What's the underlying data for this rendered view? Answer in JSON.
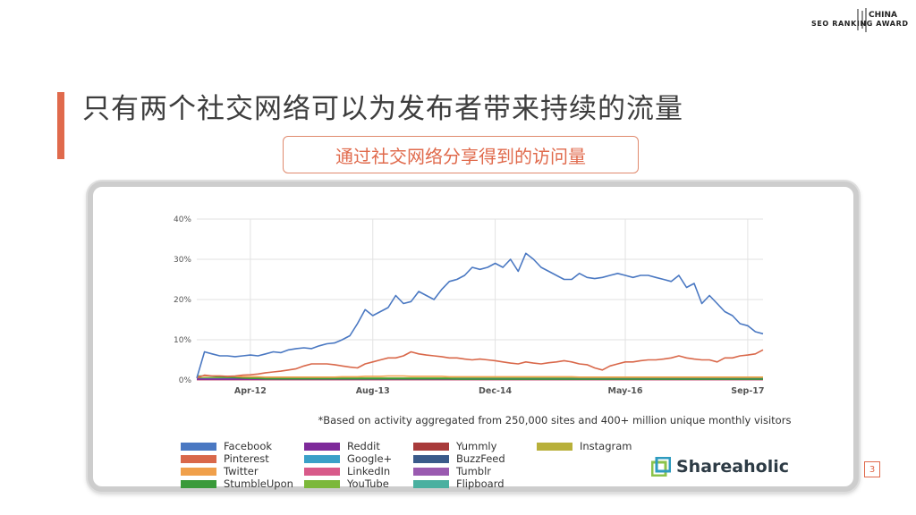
{
  "logo": {
    "line1": "CHINA",
    "line2": "SEO RANKING AWARD"
  },
  "slide": {
    "title": "只有两个社交网络可以为发布者带来持续的流量",
    "subtitle": "通过社交网络分享得到的访问量",
    "page_number": "3"
  },
  "chart_data": {
    "type": "line",
    "title": "",
    "xlabel": "",
    "ylabel": "",
    "ylim": [
      0,
      40
    ],
    "y_ticks": [
      "40%",
      "30%",
      "20%",
      "10%",
      "0%"
    ],
    "x_ticks": [
      "Apr-12",
      "Aug-13",
      "Dec-14",
      "May-16",
      "Sep-17"
    ],
    "x": [
      "2011-09",
      "2011-10",
      "2011-11",
      "2011-12",
      "2012-01",
      "2012-02",
      "2012-03",
      "2012-04",
      "2012-05",
      "2012-06",
      "2012-07",
      "2012-08",
      "2012-09",
      "2012-10",
      "2012-11",
      "2012-12",
      "2013-01",
      "2013-02",
      "2013-03",
      "2013-04",
      "2013-05",
      "2013-06",
      "2013-07",
      "2013-08",
      "2013-09",
      "2013-10",
      "2013-11",
      "2013-12",
      "2014-01",
      "2014-02",
      "2014-03",
      "2014-04",
      "2014-05",
      "2014-06",
      "2014-07",
      "2014-08",
      "2014-09",
      "2014-10",
      "2014-11",
      "2014-12",
      "2015-01",
      "2015-02",
      "2015-03",
      "2015-04",
      "2015-05",
      "2015-06",
      "2015-07",
      "2015-08",
      "2015-09",
      "2015-10",
      "2015-11",
      "2015-12",
      "2016-01",
      "2016-02",
      "2016-03",
      "2016-04",
      "2016-05",
      "2016-06",
      "2016-07",
      "2016-08",
      "2016-09",
      "2016-10",
      "2016-11",
      "2016-12",
      "2017-01",
      "2017-02",
      "2017-03",
      "2017-04",
      "2017-05",
      "2017-06",
      "2017-07",
      "2017-08",
      "2017-09",
      "2017-10",
      "2017-11"
    ],
    "grid": true,
    "legend_position": "bottom-left",
    "series": [
      {
        "name": "Facebook",
        "color": "#4a78c2",
        "values": [
          0.5,
          7,
          6.5,
          6,
          6,
          5.8,
          6,
          6.2,
          6,
          6.5,
          7,
          6.8,
          7.5,
          7.8,
          8,
          7.8,
          8.5,
          9,
          9.2,
          10,
          11,
          14,
          17.5,
          16,
          17,
          18,
          21,
          19,
          19.5,
          22,
          21,
          20,
          22.5,
          24.5,
          25,
          26,
          28,
          27.5,
          28,
          29,
          28,
          30,
          27,
          31.5,
          30,
          28,
          27,
          26,
          25,
          25,
          26.5,
          25.5,
          25.2,
          25.5,
          26,
          26.5,
          26,
          25.5,
          26,
          26,
          25.5,
          25,
          24.5,
          26,
          23,
          24,
          19,
          21,
          19,
          17,
          16,
          14,
          13.5,
          12,
          11.5
        ]
      },
      {
        "name": "Pinterest",
        "color": "#d9684a",
        "values": [
          0.5,
          1.2,
          1,
          1,
          0.9,
          1,
          1.2,
          1.3,
          1.5,
          1.8,
          2,
          2.2,
          2.5,
          2.8,
          3.5,
          4,
          4,
          4,
          3.8,
          3.5,
          3.2,
          3,
          4,
          4.5,
          5,
          5.5,
          5.5,
          6,
          7,
          6.5,
          6.2,
          6,
          5.8,
          5.5,
          5.5,
          5.2,
          5,
          5.2,
          5,
          4.8,
          4.5,
          4.2,
          4,
          4.5,
          4.2,
          4,
          4.3,
          4.5,
          4.8,
          4.5,
          4,
          3.8,
          3,
          2.5,
          3.5,
          4,
          4.5,
          4.5,
          4.8,
          5,
          5,
          5.2,
          5.5,
          6,
          5.5,
          5.2,
          5,
          5,
          4.5,
          5.5,
          5.5,
          6,
          6.2,
          6.5,
          7.5
        ]
      },
      {
        "name": "Twitter",
        "color": "#f0a04b",
        "values": [
          0.8,
          1,
          1,
          1,
          0.9,
          0.9,
          0.8,
          0.8,
          0.8,
          0.7,
          0.7,
          0.7,
          0.7,
          0.7,
          0.7,
          0.7,
          0.7,
          0.7,
          0.7,
          0.8,
          0.8,
          0.8,
          0.9,
          0.9,
          0.9,
          1,
          1,
          1,
          0.9,
          0.9,
          0.9,
          0.9,
          0.9,
          0.8,
          0.8,
          0.8,
          0.8,
          0.8,
          0.8,
          0.8,
          0.8,
          0.8,
          0.8,
          0.8,
          0.8,
          0.8,
          0.8,
          0.8,
          0.8,
          0.8,
          0.7,
          0.7,
          0.7,
          0.7,
          0.7,
          0.7,
          0.7,
          0.7,
          0.7,
          0.7,
          0.7,
          0.7,
          0.7,
          0.7,
          0.7,
          0.7,
          0.7,
          0.7,
          0.7,
          0.7,
          0.7,
          0.7,
          0.7,
          0.7,
          0.7
        ]
      },
      {
        "name": "StumbleUpon",
        "color": "#3a9a3a",
        "values": [
          1,
          1,
          0.9,
          0.8,
          0.7,
          0.6,
          0.5,
          0.4,
          0.4,
          0.3,
          0.3,
          0.3,
          0.3,
          0.3,
          0.3,
          0.3,
          0.3,
          0.3,
          0.3,
          0.3,
          0.3,
          0.3,
          0.3,
          0.3,
          0.3,
          0.3,
          0.3,
          0.3,
          0.3,
          0.3,
          0.3,
          0.3,
          0.3,
          0.3,
          0.2,
          0.2,
          0.2,
          0.2,
          0.2,
          0.2,
          0.2,
          0.2,
          0.2,
          0.2,
          0.2,
          0.2,
          0.2,
          0.2,
          0.2,
          0.2,
          0.2,
          0.2,
          0.2,
          0.2,
          0.2,
          0.2,
          0.2,
          0.2,
          0.2,
          0.2,
          0.2,
          0.2,
          0.2,
          0.2,
          0.2,
          0.2,
          0.2,
          0.2,
          0.2,
          0.2,
          0.2,
          0.2,
          0.2,
          0.2,
          0.2
        ]
      },
      {
        "name": "Reddit",
        "color": "#7e2a9a",
        "values": [
          0.2,
          0.2,
          0.2,
          0.2,
          0.2,
          0.2,
          0.2,
          0.2,
          0.2,
          0.2,
          0.2,
          0.2,
          0.2,
          0.2,
          0.2,
          0.2,
          0.2,
          0.2,
          0.2,
          0.2,
          0.2,
          0.2,
          0.2,
          0.2,
          0.2,
          0.2,
          0.2,
          0.2,
          0.2,
          0.2,
          0.2,
          0.2,
          0.2,
          0.2,
          0.2,
          0.2,
          0.2,
          0.2,
          0.2,
          0.2,
          0.2,
          0.2,
          0.2,
          0.2,
          0.2,
          0.2,
          0.2,
          0.2,
          0.2,
          0.2,
          0.2,
          0.2,
          0.2,
          0.2,
          0.2,
          0.2,
          0.2,
          0.2,
          0.2,
          0.2,
          0.2,
          0.2,
          0.2,
          0.2,
          0.2,
          0.2,
          0.2,
          0.2,
          0.2,
          0.2,
          0.2,
          0.2,
          0.2,
          0.2,
          0.2
        ]
      },
      {
        "name": "Google+",
        "color": "#3aa0c8",
        "values": [
          0.3,
          0.3,
          0.3,
          0.3,
          0.3,
          0.3,
          0.3,
          0.3,
          0.3,
          0.3,
          0.3,
          0.3,
          0.3,
          0.3,
          0.3,
          0.3,
          0.3,
          0.3,
          0.3,
          0.3,
          0.3,
          0.3,
          0.3,
          0.3,
          0.3,
          0.3,
          0.3,
          0.3,
          0.3,
          0.3,
          0.3,
          0.3,
          0.3,
          0.3,
          0.3,
          0.3,
          0.3,
          0.3,
          0.3,
          0.3,
          0.3,
          0.3,
          0.3,
          0.3,
          0.3,
          0.3,
          0.3,
          0.3,
          0.3,
          0.3,
          0.3,
          0.3,
          0.3,
          0.3,
          0.3,
          0.3,
          0.3,
          0.3,
          0.3,
          0.3,
          0.3,
          0.3,
          0.3,
          0.3,
          0.3,
          0.3,
          0.3,
          0.3,
          0.3,
          0.3,
          0.3,
          0.3,
          0.3,
          0.3,
          0.3
        ]
      },
      {
        "name": "LinkedIn",
        "color": "#d85a8a",
        "values": [
          0.1,
          0.1,
          0.1,
          0.1,
          0.1,
          0.1,
          0.1,
          0.1,
          0.1,
          0.1,
          0.1,
          0.1,
          0.1,
          0.1,
          0.1,
          0.1,
          0.1,
          0.1,
          0.1,
          0.1,
          0.1,
          0.1,
          0.1,
          0.1,
          0.1,
          0.1,
          0.1,
          0.1,
          0.1,
          0.1,
          0.1,
          0.1,
          0.1,
          0.1,
          0.1,
          0.1,
          0.1,
          0.1,
          0.1,
          0.1,
          0.1,
          0.1,
          0.1,
          0.1,
          0.1,
          0.1,
          0.1,
          0.1,
          0.1,
          0.1,
          0.1,
          0.1,
          0.1,
          0.1,
          0.1,
          0.1,
          0.1,
          0.1,
          0.1,
          0.1,
          0.1,
          0.1,
          0.1,
          0.1,
          0.1,
          0.1,
          0.1,
          0.1,
          0.1,
          0.1,
          0.1,
          0.1,
          0.1,
          0.1,
          0.1
        ]
      },
      {
        "name": "YouTube",
        "color": "#7cb83a",
        "values": [
          0.5,
          0.5,
          0.5,
          0.5,
          0.5,
          0.5,
          0.5,
          0.5,
          0.5,
          0.5,
          0.5,
          0.5,
          0.5,
          0.5,
          0.5,
          0.5,
          0.5,
          0.5,
          0.5,
          0.5,
          0.5,
          0.5,
          0.5,
          0.5,
          0.5,
          0.5,
          0.5,
          0.5,
          0.5,
          0.5,
          0.5,
          0.5,
          0.5,
          0.5,
          0.5,
          0.5,
          0.5,
          0.5,
          0.5,
          0.5,
          0.5,
          0.5,
          0.5,
          0.5,
          0.5,
          0.5,
          0.5,
          0.5,
          0.5,
          0.5,
          0.5,
          0.5,
          0.5,
          0.5,
          0.5,
          0.5,
          0.5,
          0.5,
          0.5,
          0.5,
          0.5,
          0.5,
          0.5,
          0.5,
          0.5,
          0.5,
          0.5,
          0.5,
          0.5,
          0.5,
          0.5,
          0.5,
          0.5,
          0.5,
          0.5
        ]
      },
      {
        "name": "Yummly",
        "color": "#a83a3a",
        "values": [
          0.1,
          0.1,
          0.1,
          0.1,
          0.1,
          0.1,
          0.1,
          0.1,
          0.1,
          0.1,
          0.1,
          0.1,
          0.1,
          0.1,
          0.1,
          0.1,
          0.1,
          0.1,
          0.1,
          0.1,
          0.1,
          0.1,
          0.1,
          0.1,
          0.1,
          0.1,
          0.1,
          0.1,
          0.1,
          0.1,
          0.1,
          0.1,
          0.1,
          0.1,
          0.1,
          0.1,
          0.1,
          0.1,
          0.1,
          0.1,
          0.1,
          0.1,
          0.1,
          0.1,
          0.1,
          0.1,
          0.1,
          0.1,
          0.1,
          0.1,
          0.1,
          0.1,
          0.1,
          0.1,
          0.1,
          0.1,
          0.1,
          0.1,
          0.1,
          0.1,
          0.1,
          0.1,
          0.1,
          0.1,
          0.1,
          0.1,
          0.1,
          0.1,
          0.1,
          0.1,
          0.1,
          0.1,
          0.1,
          0.1,
          0.1
        ]
      },
      {
        "name": "BuzzFeed",
        "color": "#3a5a8a",
        "values": [
          0.1,
          0.1,
          0.1,
          0.1,
          0.1,
          0.1,
          0.1,
          0.1,
          0.1,
          0.1,
          0.1,
          0.1,
          0.1,
          0.1,
          0.1,
          0.1,
          0.1,
          0.1,
          0.1,
          0.1,
          0.1,
          0.1,
          0.1,
          0.1,
          0.1,
          0.1,
          0.1,
          0.1,
          0.1,
          0.1,
          0.1,
          0.1,
          0.1,
          0.1,
          0.1,
          0.1,
          0.1,
          0.1,
          0.1,
          0.1,
          0.1,
          0.1,
          0.1,
          0.1,
          0.1,
          0.1,
          0.1,
          0.1,
          0.1,
          0.1,
          0.1,
          0.1,
          0.1,
          0.1,
          0.1,
          0.1,
          0.1,
          0.1,
          0.1,
          0.1,
          0.1,
          0.1,
          0.1,
          0.1,
          0.1,
          0.1,
          0.1,
          0.1,
          0.1,
          0.1,
          0.1,
          0.1,
          0.1,
          0.1,
          0.1
        ]
      },
      {
        "name": "Tumblr",
        "color": "#9a5ab0",
        "values": [
          0.2,
          0.2,
          0.2,
          0.2,
          0.2,
          0.2,
          0.2,
          0.2,
          0.2,
          0.2,
          0.2,
          0.2,
          0.2,
          0.2,
          0.2,
          0.2,
          0.2,
          0.2,
          0.2,
          0.2,
          0.2,
          0.2,
          0.2,
          0.2,
          0.2,
          0.2,
          0.2,
          0.2,
          0.2,
          0.2,
          0.2,
          0.2,
          0.2,
          0.2,
          0.2,
          0.2,
          0.2,
          0.2,
          0.2,
          0.2,
          0.2,
          0.2,
          0.2,
          0.2,
          0.2,
          0.2,
          0.2,
          0.2,
          0.2,
          0.2,
          0.2,
          0.2,
          0.2,
          0.2,
          0.2,
          0.2,
          0.2,
          0.2,
          0.2,
          0.2,
          0.2,
          0.2,
          0.2,
          0.2,
          0.2,
          0.2,
          0.2,
          0.2,
          0.2,
          0.2,
          0.2,
          0.2,
          0.2,
          0.2,
          0.2
        ]
      },
      {
        "name": "Flipboard",
        "color": "#4ab0a0",
        "values": [
          0.1,
          0.1,
          0.1,
          0.1,
          0.1,
          0.1,
          0.1,
          0.1,
          0.1,
          0.1,
          0.1,
          0.1,
          0.1,
          0.1,
          0.1,
          0.1,
          0.1,
          0.1,
          0.1,
          0.1,
          0.1,
          0.1,
          0.1,
          0.1,
          0.1,
          0.1,
          0.1,
          0.1,
          0.1,
          0.1,
          0.1,
          0.1,
          0.1,
          0.1,
          0.1,
          0.1,
          0.1,
          0.1,
          0.1,
          0.1,
          0.1,
          0.1,
          0.1,
          0.1,
          0.1,
          0.1,
          0.1,
          0.1,
          0.1,
          0.1,
          0.1,
          0.1,
          0.1,
          0.1,
          0.1,
          0.1,
          0.1,
          0.1,
          0.1,
          0.1,
          0.1,
          0.1,
          0.1,
          0.1,
          0.1,
          0.1,
          0.1,
          0.1,
          0.1,
          0.1,
          0.1,
          0.1,
          0.1,
          0.1,
          0.1
        ]
      },
      {
        "name": "Instagram",
        "color": "#b8b03a",
        "values": [
          0.1,
          0.1,
          0.1,
          0.1,
          0.1,
          0.1,
          0.1,
          0.1,
          0.1,
          0.1,
          0.1,
          0.1,
          0.1,
          0.1,
          0.1,
          0.1,
          0.1,
          0.1,
          0.1,
          0.1,
          0.1,
          0.1,
          0.1,
          0.1,
          0.1,
          0.1,
          0.1,
          0.1,
          0.1,
          0.1,
          0.1,
          0.1,
          0.1,
          0.1,
          0.1,
          0.1,
          0.1,
          0.1,
          0.1,
          0.1,
          0.1,
          0.1,
          0.1,
          0.1,
          0.1,
          0.1,
          0.1,
          0.1,
          0.1,
          0.1,
          0.1,
          0.1,
          0.1,
          0.1,
          0.1,
          0.1,
          0.1,
          0.1,
          0.1,
          0.1,
          0.1,
          0.1,
          0.1,
          0.1,
          0.1,
          0.1,
          0.1,
          0.1,
          0.1,
          0.1,
          0.1,
          0.1,
          0.1,
          0.1,
          0.1
        ]
      }
    ],
    "footnote": "*Based on activity aggregated from 250,000 sites and 400+ million unique monthly visitors",
    "source_brand": "Shareaholic"
  }
}
